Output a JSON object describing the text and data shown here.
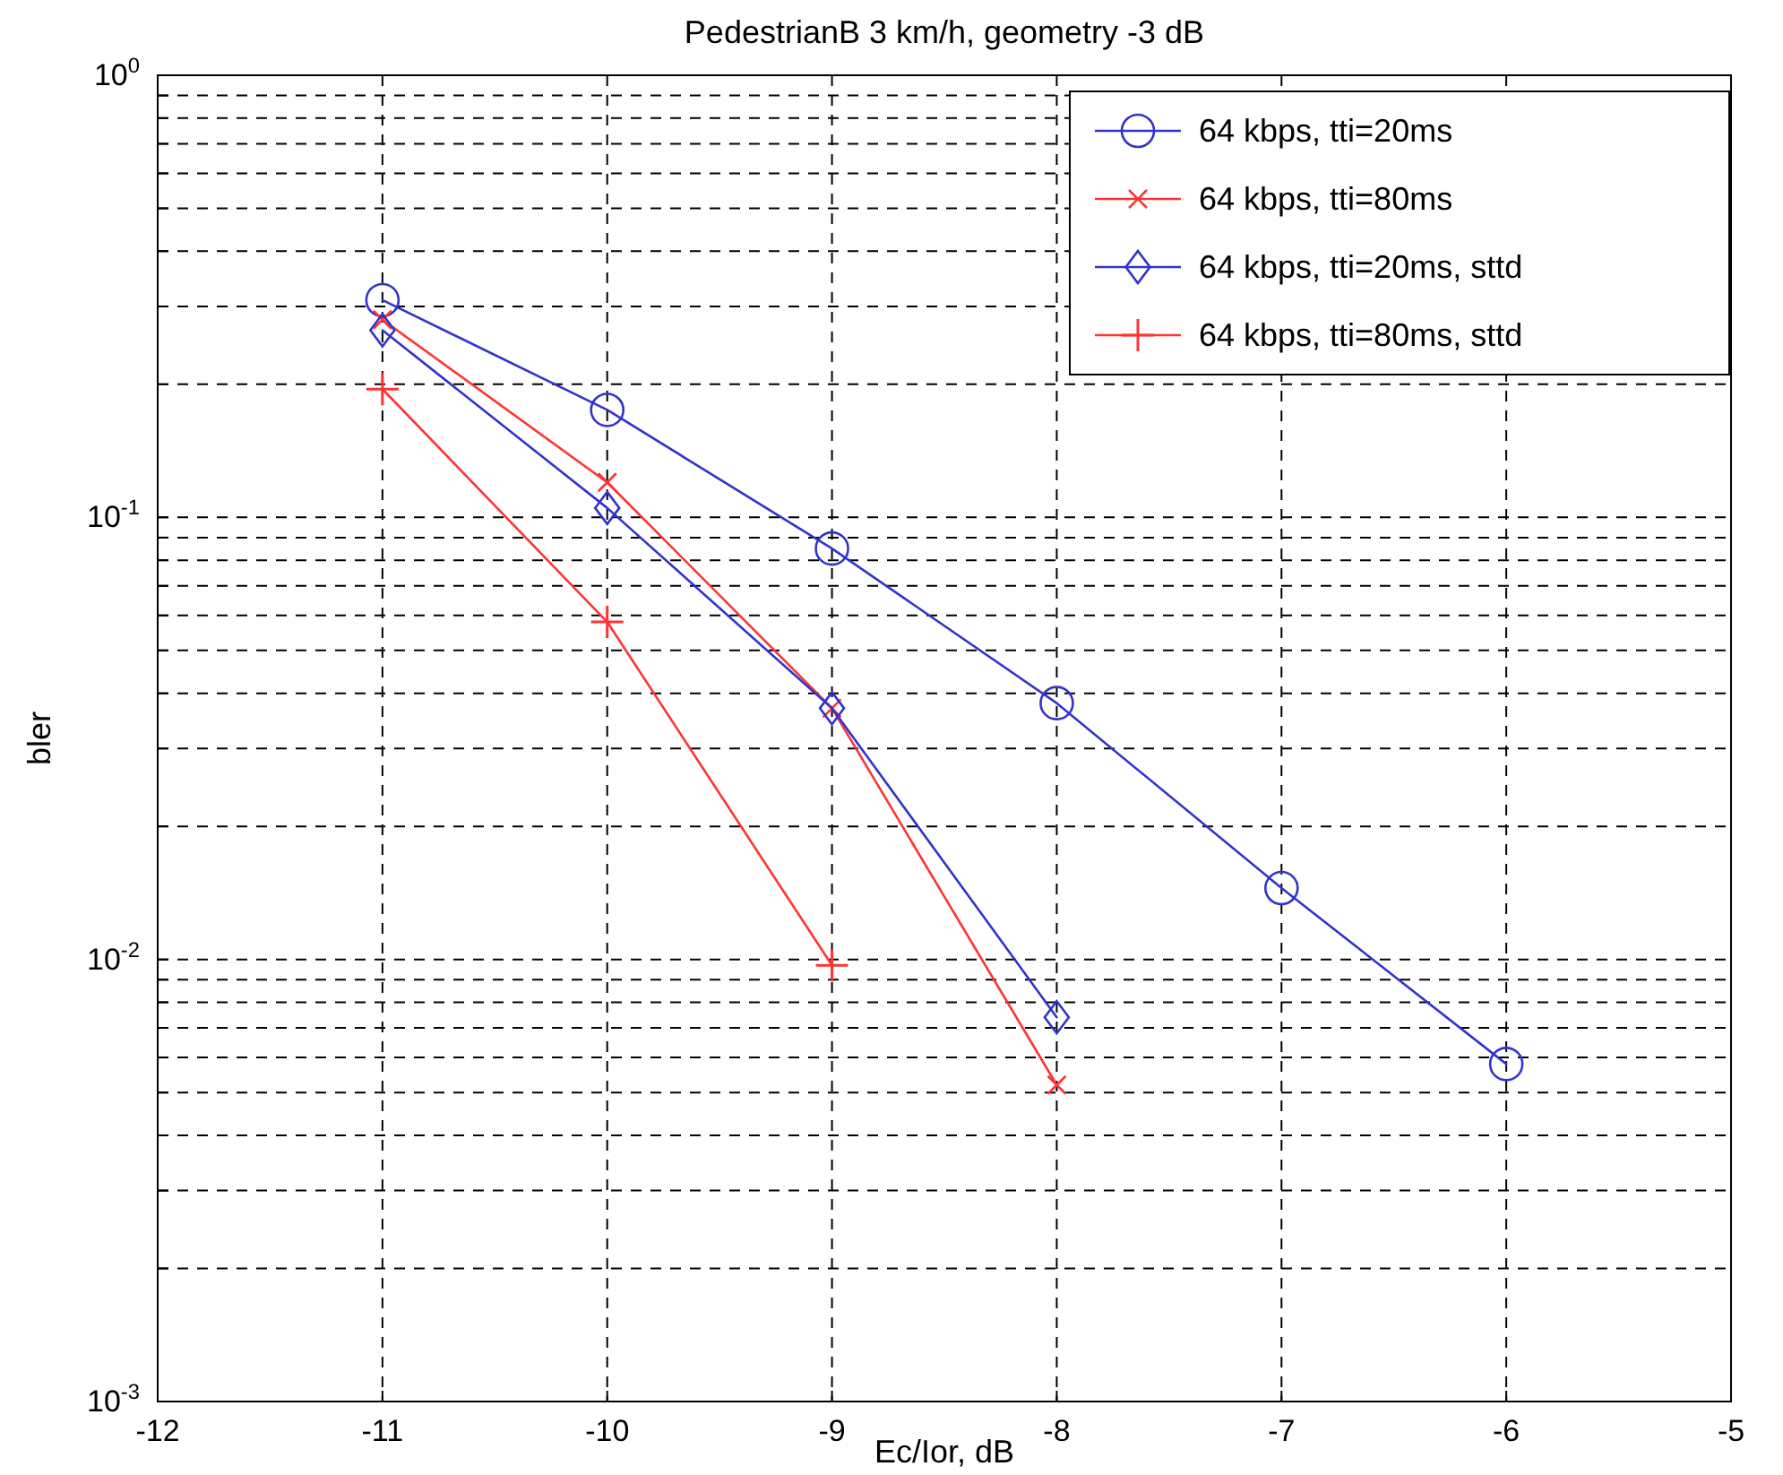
{
  "chart_data": {
    "type": "line",
    "title": "PedestrianB 3 km/h, geometry -3 dB",
    "xlabel": "Ec/Ior, dB",
    "ylabel": "bler",
    "log": "y",
    "grid": true,
    "legend": "top right",
    "line_style": "solid",
    "xlim": [
      -12,
      -5
    ],
    "xticks": [
      -12,
      -11,
      -10,
      -9,
      -8,
      -7,
      -6,
      -5
    ],
    "ylim": [
      0.001,
      1
    ],
    "yticks": [
      {
        "value": 0.001,
        "label": "10$^{-3}$"
      },
      {
        "value": 0.002,
        "label": null
      },
      {
        "value": 0.003,
        "label": null
      },
      {
        "value": 0.004,
        "label": null
      },
      {
        "value": 0.005,
        "label": null
      },
      {
        "value": 0.006,
        "label": null
      },
      {
        "value": 0.007,
        "label": null
      },
      {
        "value": 0.008,
        "label": null
      },
      {
        "value": 0.009,
        "label": null
      },
      {
        "value": 0.01,
        "label": "10$^{-2}$"
      },
      {
        "value": 0.02,
        "label": null
      },
      {
        "value": 0.03,
        "label": null
      },
      {
        "value": 0.04,
        "label": null
      },
      {
        "value": 0.05,
        "label": null
      },
      {
        "value": 0.06,
        "label": null
      },
      {
        "value": 0.07,
        "label": null
      },
      {
        "value": 0.08,
        "label": null
      },
      {
        "value": 0.09,
        "label": null
      },
      {
        "value": 0.1,
        "label": "10$^{-1}$"
      },
      {
        "value": 0.2,
        "label": null
      },
      {
        "value": 0.3,
        "label": null
      },
      {
        "value": 0.4,
        "label": null
      },
      {
        "value": 0.5,
        "label": null
      },
      {
        "value": 0.6,
        "label": null
      },
      {
        "value": 0.7,
        "label": null
      },
      {
        "value": 0.8,
        "label": null
      },
      {
        "value": 0.9,
        "label": null
      },
      {
        "value": 1,
        "label": "10$^{0}$"
      }
    ],
    "series": [
      {
        "name": "64 kbps, tti=20ms",
        "color": "#3333cc",
        "marker": "circle",
        "x": [
          -11,
          -10,
          -9,
          -8,
          -7,
          -6
        ],
        "values": [
          0.31,
          0.175,
          0.085,
          0.038,
          0.0145,
          0.0058
        ]
      },
      {
        "name": "64 kbps, tti=80ms",
        "color": "#ff3333",
        "marker": "cross",
        "x": [
          -11,
          -10,
          -9,
          -8
        ],
        "values": [
          0.28,
          0.12,
          0.037,
          0.0052
        ]
      },
      {
        "name": "64 kbps, tti=20ms, sttd",
        "color": "#3333cc",
        "marker": "diamond",
        "x": [
          -11,
          -10,
          -9,
          -8
        ],
        "values": [
          0.265,
          0.105,
          0.037,
          0.0074
        ]
      },
      {
        "name": "64 kbps, tti=80ms, sttd",
        "color": "#ff3333",
        "marker": "plus",
        "x": [
          -11,
          -10,
          -9
        ],
        "values": [
          0.195,
          0.058,
          0.0097
        ]
      }
    ]
  }
}
